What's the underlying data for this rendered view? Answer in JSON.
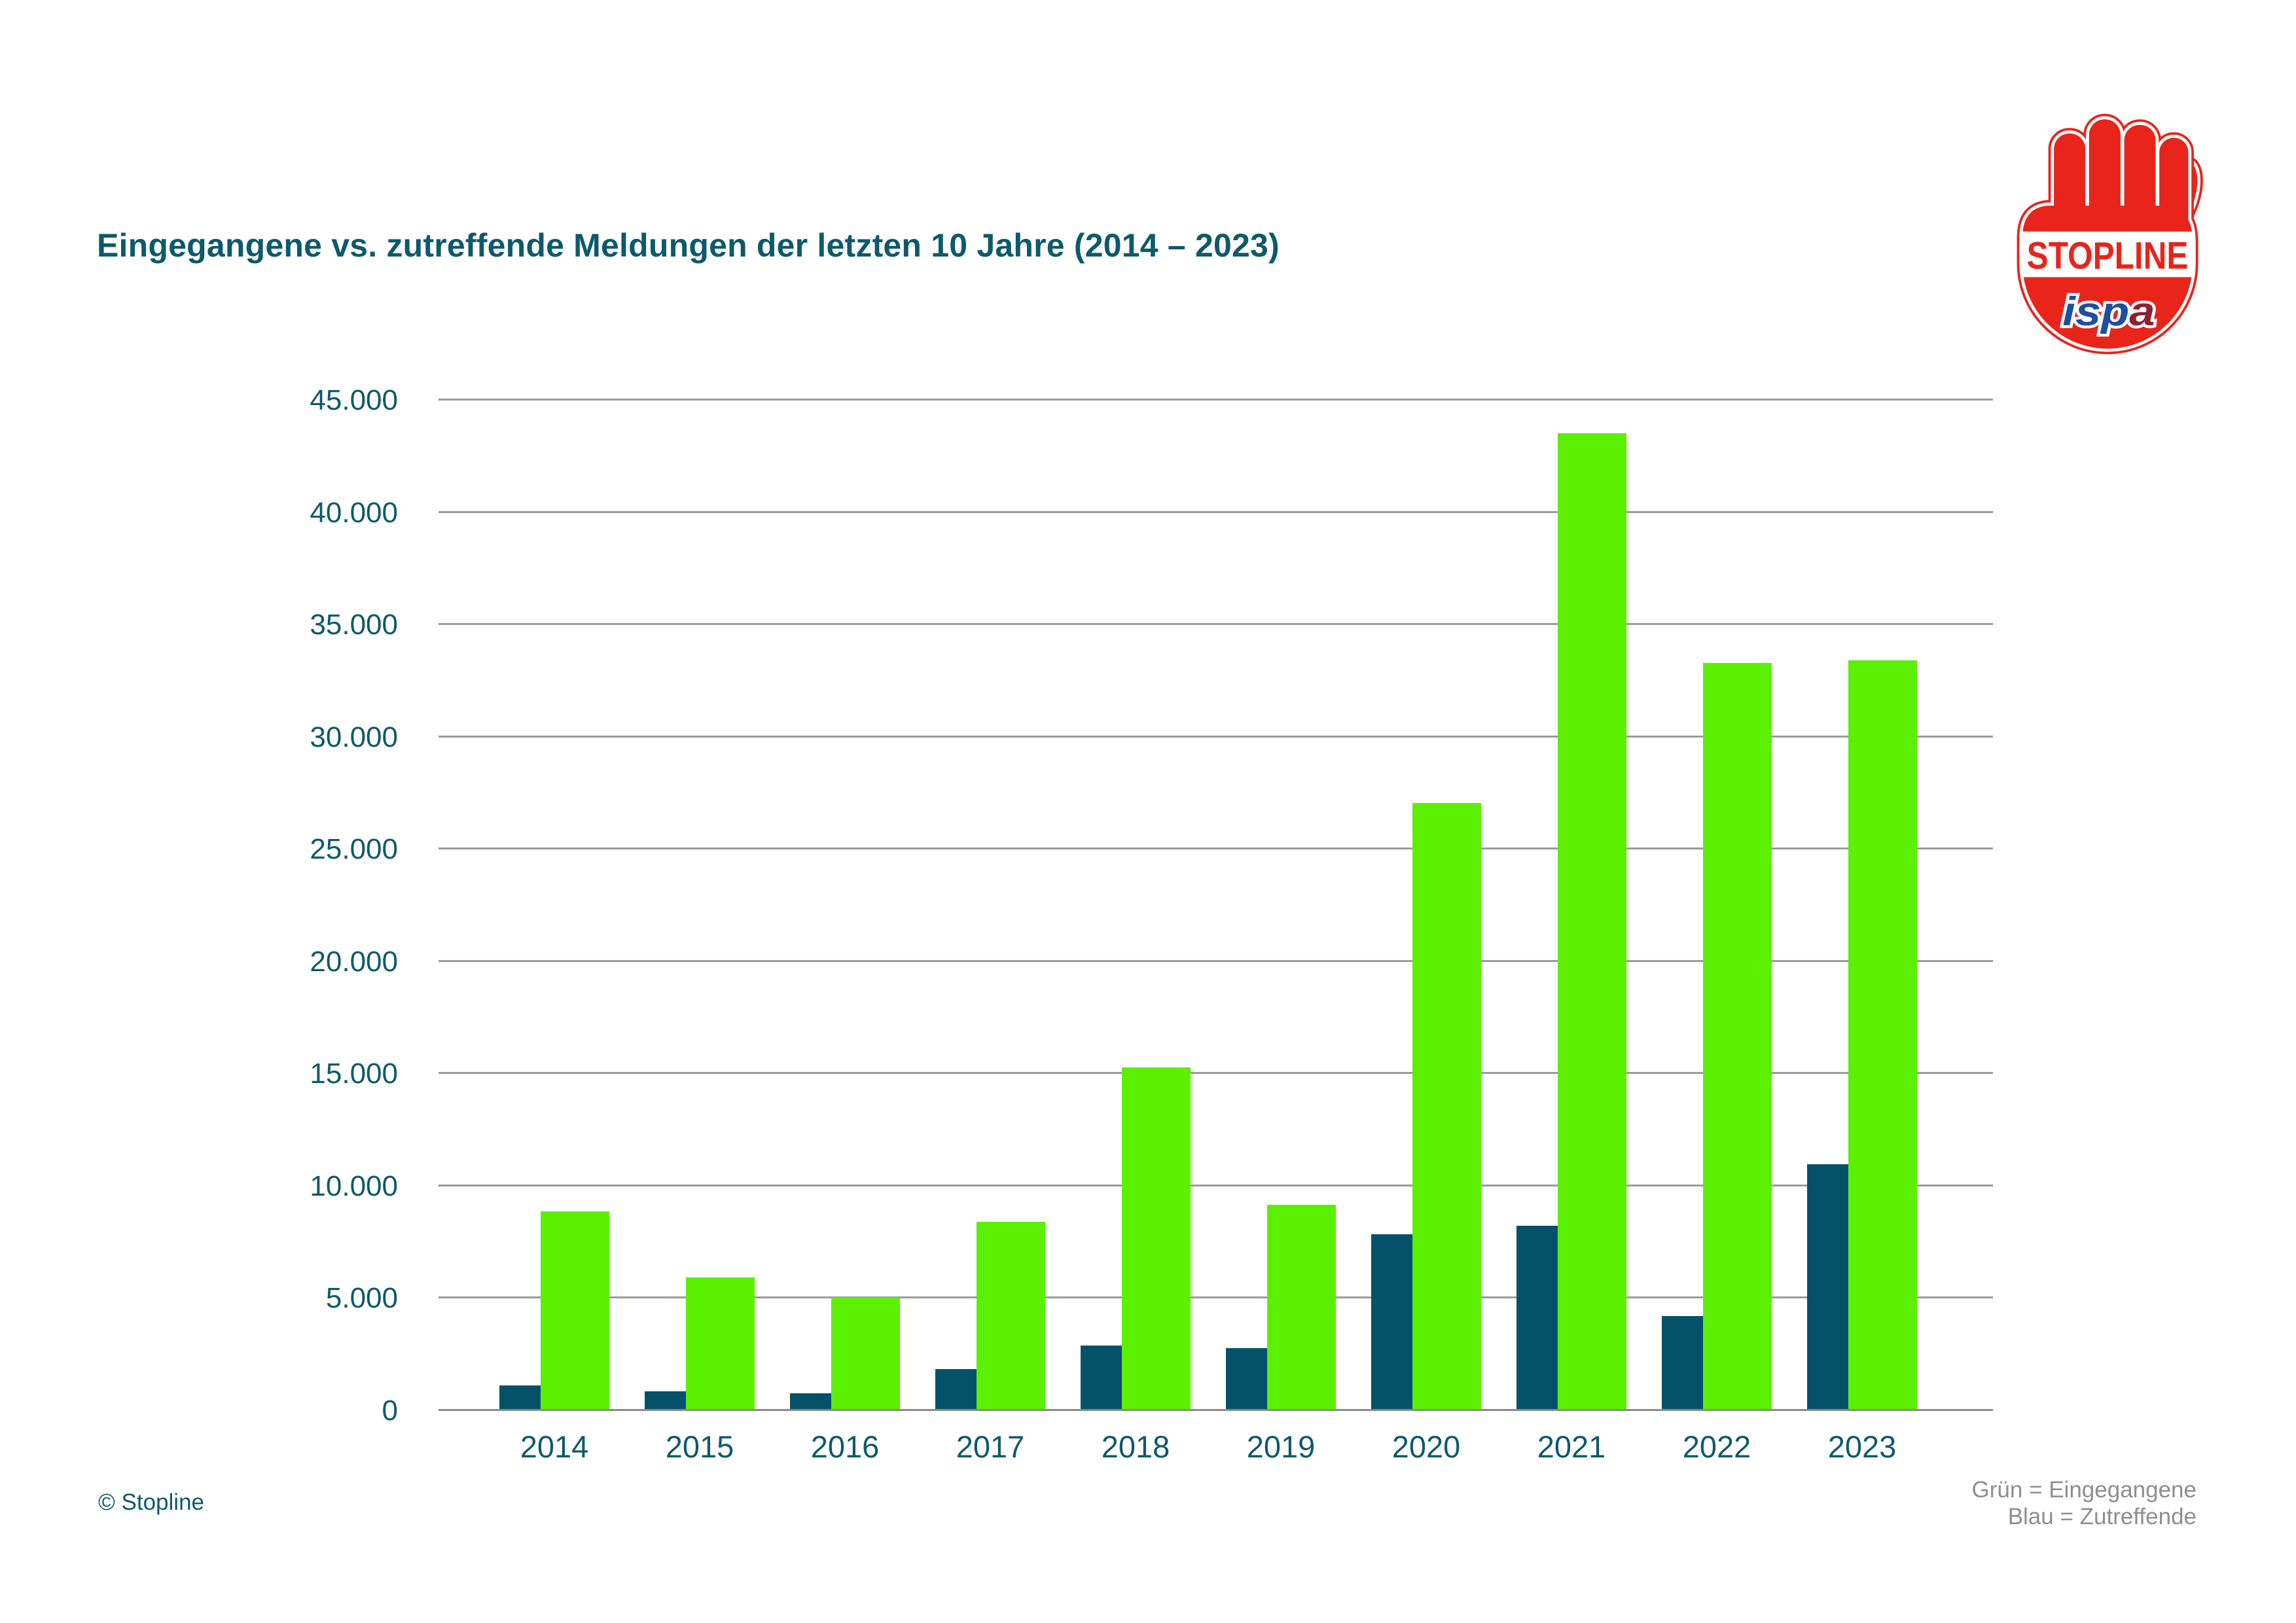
{
  "title": "Eingegangene vs. zutreffende Meldungen der letzten 10 Jahre (2014 – 2023)",
  "footer": {
    "copyright": "© Stopline",
    "legend_line1": "Grün = Eingegangene",
    "legend_line2": "Blau = Zutreffende"
  },
  "logo": {
    "stopline_text": "STOPLINE",
    "ispa_prefix": "isp",
    "ispa_suffix": "a"
  },
  "colors": {
    "green": "#5BF000",
    "blue": "#03526A",
    "teal_text": "#0D5A6B",
    "legend_gray": "#8E8E90",
    "grid_gray": "#9B9B9B",
    "axis_gray": "#8A8A8A",
    "logo_red": "#E8241B",
    "ispa_blue": "#1C4FA1",
    "ispa_dark_red": "#8C2130"
  },
  "chart_data": {
    "type": "bar",
    "title": "Eingegangene vs. zutreffende Meldungen der letzten 10 Jahre (2014 – 2023)",
    "categories": [
      "2014",
      "2015",
      "2016",
      "2017",
      "2018",
      "2019",
      "2020",
      "2021",
      "2022",
      "2023"
    ],
    "series": [
      {
        "name": "Eingegangene",
        "color": "#5BF000",
        "values": [
          8800,
          5850,
          4970,
          8350,
          15200,
          9100,
          27000,
          43470,
          33220,
          33340
        ]
      },
      {
        "name": "Zutreffende",
        "color": "#03526A",
        "values": [
          1040,
          800,
          700,
          1790,
          2840,
          2700,
          7770,
          8150,
          4140,
          10890
        ]
      }
    ],
    "xlabel": "",
    "ylabel": "",
    "ylim": [
      0,
      45000
    ],
    "y_ticks": [
      "45.000",
      "40.000",
      "35.000",
      "30.000",
      "25.000",
      "20.000",
      "15.000",
      "10.000",
      "5.000",
      "0"
    ],
    "grid": true,
    "legend_position": "bottom-right",
    "legend_note": [
      "Grün = Eingegangene",
      "Blau = Zutreffende"
    ]
  }
}
